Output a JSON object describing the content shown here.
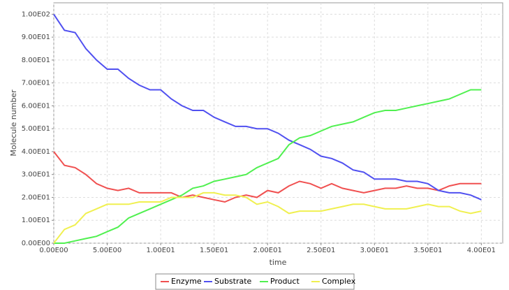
{
  "chart_data": {
    "type": "line",
    "x_label": "time",
    "y_label": "Molecule number",
    "x": [
      0,
      1,
      2,
      3,
      4,
      5,
      6,
      7,
      8,
      9,
      10,
      11,
      12,
      13,
      14,
      15,
      16,
      17,
      18,
      19,
      20,
      21,
      22,
      23,
      24,
      25,
      26,
      27,
      28,
      29,
      30,
      31,
      32,
      33,
      34,
      35,
      36,
      37,
      38,
      39,
      40
    ],
    "series": [
      {
        "name": "Enzyme",
        "color": "#f05050",
        "values": [
          40,
          34,
          33,
          30,
          26,
          24,
          23,
          24,
          22,
          22,
          22,
          22,
          20,
          21,
          20,
          19,
          18,
          20,
          21,
          20,
          23,
          22,
          25,
          27,
          26,
          24,
          26,
          24,
          23,
          22,
          23,
          24,
          24,
          25,
          24,
          24,
          23,
          25,
          26,
          26,
          26
        ]
      },
      {
        "name": "Substrate",
        "color": "#5050f0",
        "values": [
          100,
          93,
          92,
          85,
          80,
          76,
          76,
          72,
          69,
          67,
          67,
          63,
          60,
          58,
          58,
          55,
          53,
          51,
          51,
          50,
          50,
          48,
          45,
          43,
          41,
          38,
          37,
          35,
          32,
          31,
          28,
          28,
          28,
          27,
          27,
          26,
          23,
          22,
          22,
          21,
          19
        ]
      },
      {
        "name": "Product",
        "color": "#50f050",
        "values": [
          0,
          0,
          1,
          2,
          3,
          5,
          7,
          11,
          13,
          15,
          17,
          19,
          21,
          24,
          25,
          27,
          28,
          29,
          30,
          33,
          35,
          37,
          43,
          46,
          47,
          49,
          51,
          52,
          53,
          55,
          57,
          58,
          58,
          59,
          60,
          61,
          62,
          63,
          65,
          67,
          67
        ]
      },
      {
        "name": "Complex",
        "color": "#f0f050",
        "values": [
          0,
          6,
          8,
          13,
          15,
          17,
          17,
          17,
          18,
          18,
          18,
          20,
          20,
          20,
          22,
          22,
          21,
          21,
          20,
          17,
          18,
          16,
          13,
          14,
          14,
          14,
          15,
          16,
          17,
          17,
          16,
          15,
          15,
          15,
          16,
          17,
          16,
          16,
          14,
          13,
          14
        ]
      }
    ],
    "xlim": [
      0,
      42
    ],
    "ylim": [
      0,
      105
    ],
    "xticks": [
      {
        "value": 0,
        "label": "0.00E00"
      },
      {
        "value": 5,
        "label": "5.00E00"
      },
      {
        "value": 10,
        "label": "1.00E01"
      },
      {
        "value": 15,
        "label": "1.50E01"
      },
      {
        "value": 20,
        "label": "2.00E01"
      },
      {
        "value": 25,
        "label": "2.50E01"
      },
      {
        "value": 30,
        "label": "3.00E01"
      },
      {
        "value": 35,
        "label": "3.50E01"
      },
      {
        "value": 40,
        "label": "4.00E01"
      }
    ],
    "yticks": [
      {
        "value": 0,
        "label": "0.00E00"
      },
      {
        "value": 10,
        "label": "1.00E01"
      },
      {
        "value": 20,
        "label": "2.00E01"
      },
      {
        "value": 30,
        "label": "3.00E01"
      },
      {
        "value": 40,
        "label": "4.00E01"
      },
      {
        "value": 50,
        "label": "5.00E01"
      },
      {
        "value": 60,
        "label": "6.00E01"
      },
      {
        "value": 70,
        "label": "7.00E01"
      },
      {
        "value": 80,
        "label": "8.00E01"
      },
      {
        "value": 90,
        "label": "9.00E01"
      },
      {
        "value": 100,
        "label": "1.00E02"
      }
    ],
    "grid": true
  }
}
